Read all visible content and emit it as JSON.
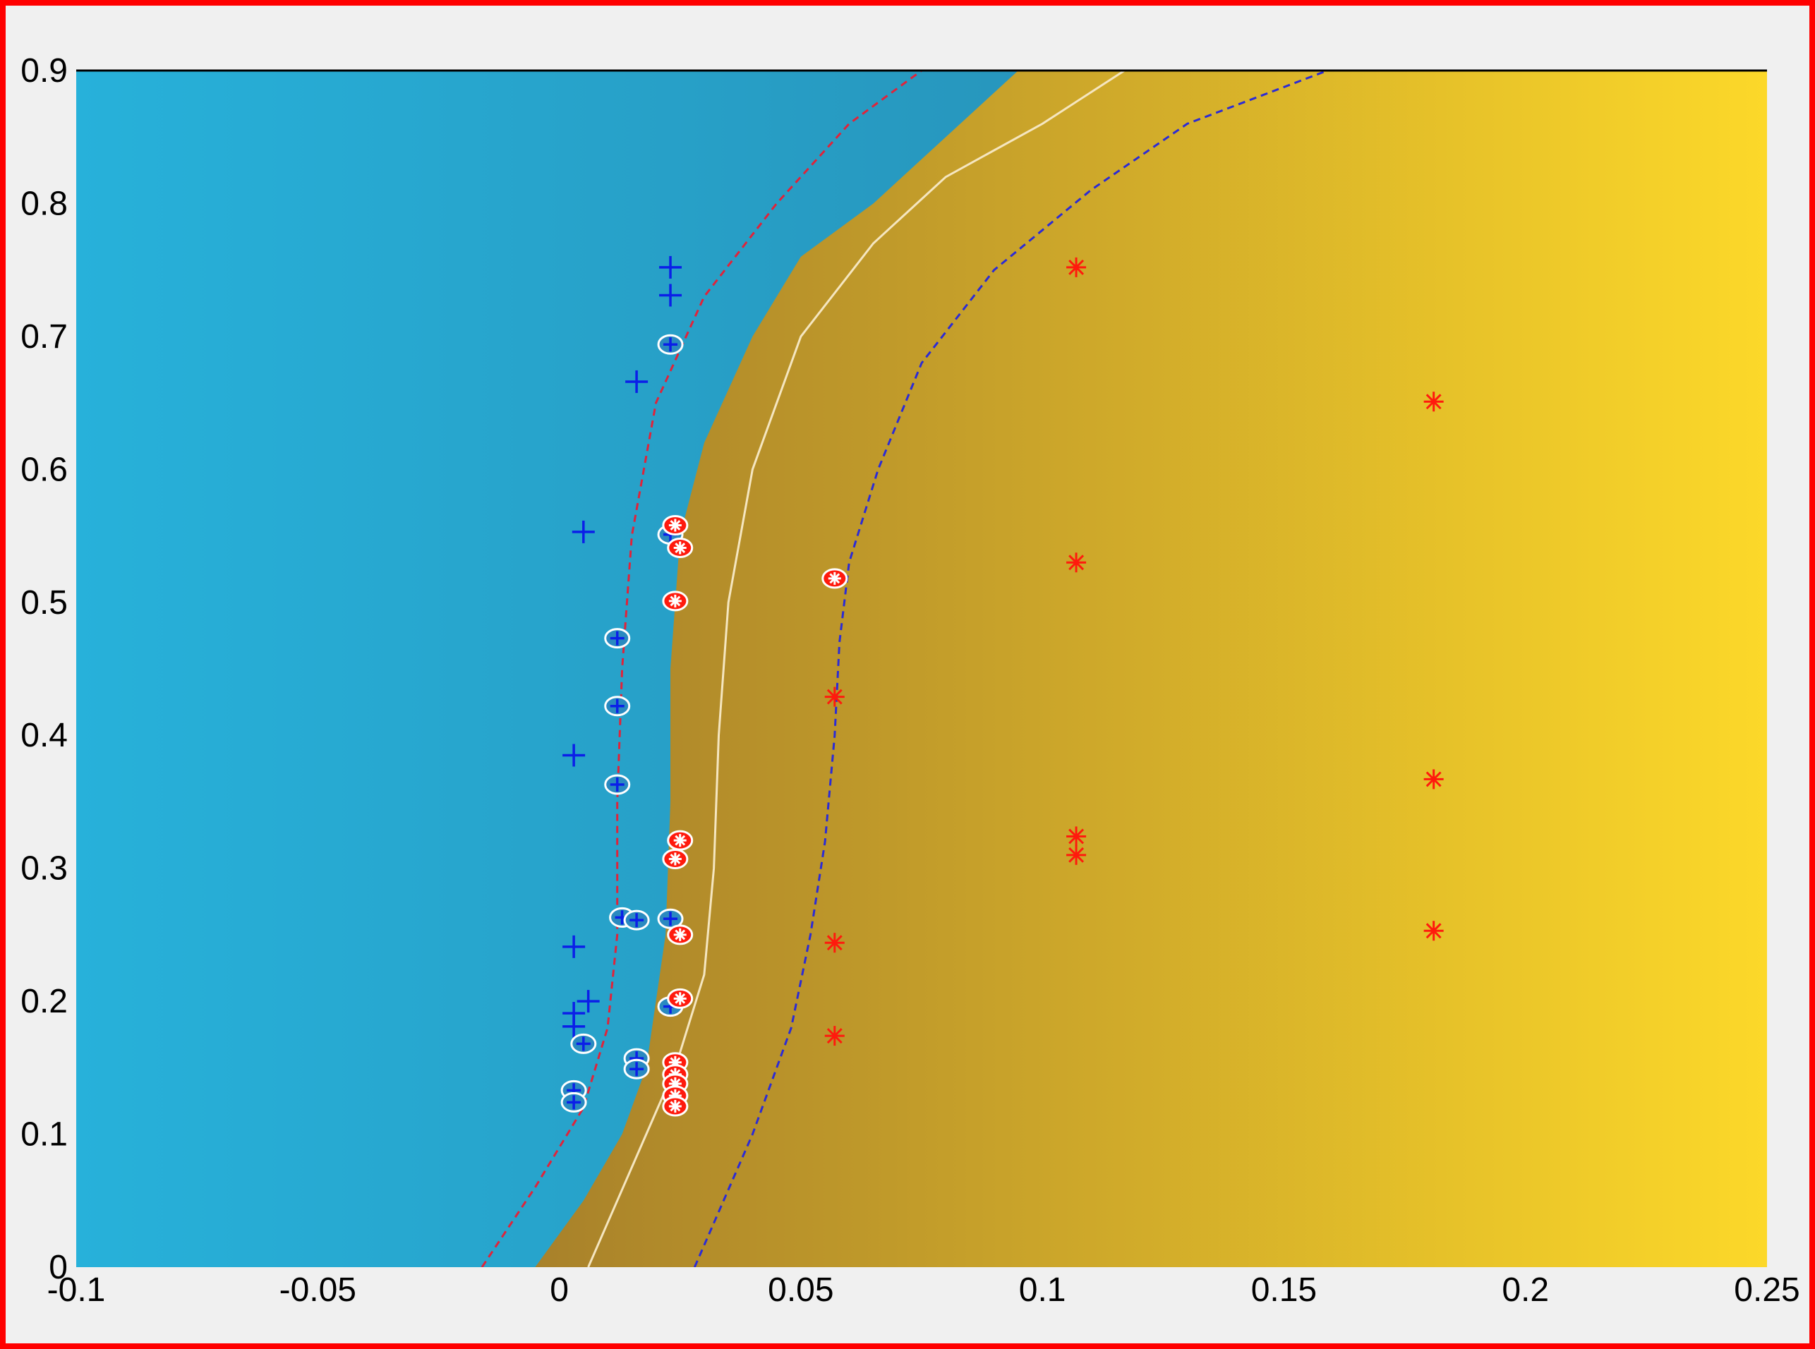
{
  "colors": {
    "frame_border": "#ff0000",
    "background": "#f0f0f0",
    "class_neg_light": "#27b1da",
    "class_neg_dark": "#2781a6",
    "class_pos_dark": "#a8812a",
    "class_pos_light": "#fcd829",
    "decision_boundary": "#f5e6c0",
    "margin_neg": "#e0233a",
    "margin_pos": "#2b2bd6",
    "marker_blue": "#0b1fe8",
    "marker_red": "#ff1a0d",
    "sv_ring": "#ffffff"
  },
  "chart_data": {
    "type": "scatter",
    "title": "",
    "xlabel": "",
    "ylabel": "",
    "xlim": [
      -0.1,
      0.25
    ],
    "ylim": [
      0,
      0.9
    ],
    "x_ticks": [
      "-0.1",
      "-0.05",
      "0",
      "0.05",
      "0.1",
      "0.15",
      "0.2",
      "0.25"
    ],
    "y_ticks": [
      "0",
      "0.1",
      "0.2",
      "0.3",
      "0.4",
      "0.5",
      "0.6",
      "0.7",
      "0.8",
      "0.9"
    ],
    "grid": false,
    "legend": "none",
    "background": "filled decision function (blue region vs gold region)",
    "region_boundary": {
      "x": [
        -0.005,
        0.005,
        0.013,
        0.018,
        0.022,
        0.023,
        0.023,
        0.025,
        0.03,
        0.04,
        0.05,
        0.065,
        0.08,
        0.095
      ],
      "y": [
        0,
        0.05,
        0.1,
        0.15,
        0.25,
        0.35,
        0.45,
        0.55,
        0.62,
        0.7,
        0.76,
        0.8,
        0.85,
        0.9
      ]
    },
    "lines": [
      {
        "style": "solid",
        "color": "#f5e6c0",
        "x": [
          0.006,
          0.012,
          0.018,
          0.024,
          0.03,
          0.032,
          0.033,
          0.035,
          0.04,
          0.05,
          0.065,
          0.08,
          0.1,
          0.117
        ],
        "y": [
          0,
          0.05,
          0.1,
          0.15,
          0.22,
          0.3,
          0.4,
          0.5,
          0.6,
          0.7,
          0.77,
          0.82,
          0.86,
          0.9
        ]
      },
      {
        "style": "dashed",
        "color": "#e0233a",
        "x": [
          -0.016,
          -0.005,
          0.005,
          0.01,
          0.012,
          0.012,
          0.013,
          0.015,
          0.02,
          0.03,
          0.045,
          0.06,
          0.075
        ],
        "y": [
          0,
          0.06,
          0.12,
          0.18,
          0.25,
          0.35,
          0.45,
          0.55,
          0.65,
          0.73,
          0.8,
          0.86,
          0.9
        ]
      },
      {
        "style": "dashed",
        "color": "#2b2bd6",
        "x": [
          0.028,
          0.04,
          0.048,
          0.052,
          0.055,
          0.057,
          0.058,
          0.06,
          0.066,
          0.075,
          0.09,
          0.11,
          0.13,
          0.159
        ],
        "y": [
          0,
          0.1,
          0.18,
          0.25,
          0.32,
          0.4,
          0.47,
          0.53,
          0.6,
          0.68,
          0.75,
          0.81,
          0.86,
          0.9
        ]
      }
    ],
    "series": [
      {
        "marker": "plus",
        "color": "#0b1fe8",
        "x": [
          0.023,
          0.023,
          0.016,
          0.005,
          0.003,
          0.003,
          0.006,
          0.003,
          0.003,
          0.023,
          0.012,
          0.012,
          0.012,
          0.023,
          0.013,
          0.016,
          0.023,
          0.023,
          0.005,
          0.016,
          0.016,
          0.003,
          0.003
        ],
        "y": [
          0.752,
          0.731,
          0.666,
          0.553,
          0.385,
          0.241,
          0.2,
          0.191,
          0.181,
          0.694,
          0.473,
          0.422,
          0.363,
          0.551,
          0.263,
          0.261,
          0.262,
          0.196,
          0.168,
          0.157,
          0.149,
          0.133,
          0.124
        ],
        "support_vector": [
          false,
          false,
          false,
          false,
          false,
          false,
          false,
          false,
          false,
          true,
          true,
          true,
          true,
          true,
          true,
          true,
          true,
          true,
          true,
          true,
          true,
          true,
          true
        ]
      },
      {
        "marker": "star",
        "color": "#ff1a0d",
        "x": [
          0.107,
          0.181,
          0.107,
          0.057,
          0.181,
          0.107,
          0.107,
          0.181,
          0.057,
          0.057,
          0.057,
          0.024,
          0.025,
          0.024,
          0.025,
          0.024,
          0.025,
          0.025,
          0.024,
          0.024,
          0.024,
          0.024,
          0.024
        ],
        "y": [
          0.752,
          0.651,
          0.53,
          0.429,
          0.367,
          0.324,
          0.31,
          0.253,
          0.244,
          0.174,
          0.518,
          0.558,
          0.541,
          0.501,
          0.321,
          0.307,
          0.25,
          0.202,
          0.154,
          0.145,
          0.138,
          0.129,
          0.121
        ],
        "support_vector": [
          false,
          false,
          false,
          false,
          false,
          false,
          false,
          false,
          false,
          false,
          true,
          true,
          true,
          true,
          true,
          true,
          true,
          true,
          true,
          true,
          true,
          true,
          true
        ]
      }
    ]
  }
}
